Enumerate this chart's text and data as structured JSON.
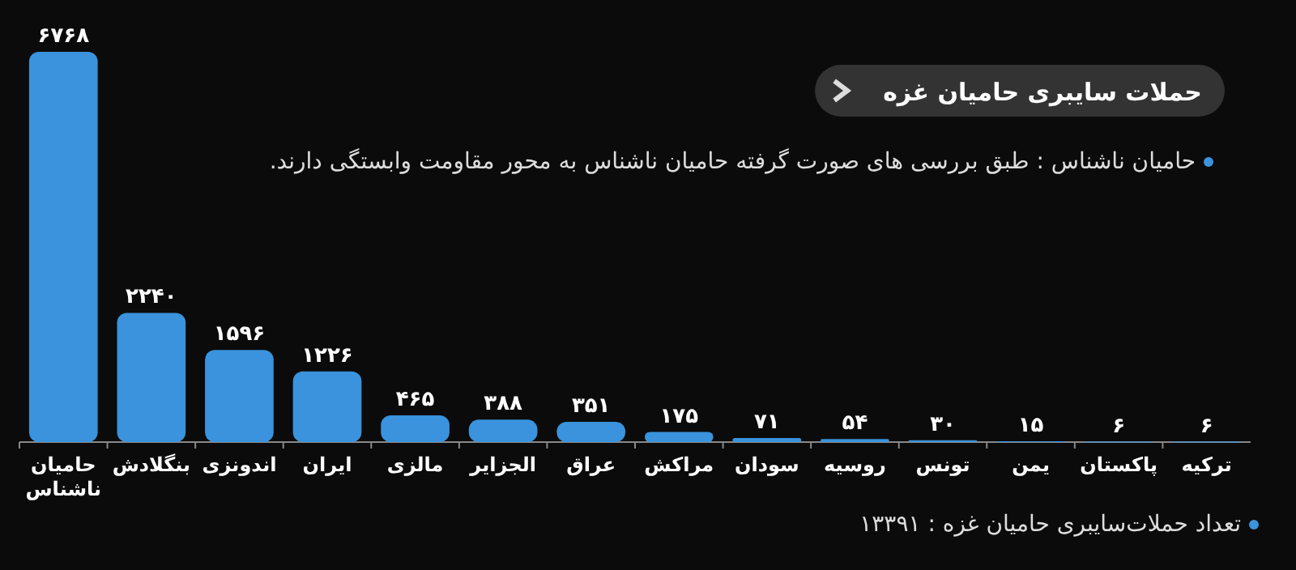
{
  "chart_data": {
    "type": "bar",
    "title": "حملات سایبری حامیان غزه",
    "categories": [
      "حامیان ناشناس",
      "بنگلادش",
      "اندونزی",
      "ایران",
      "مالزی",
      "الجزایر",
      "عراق",
      "مراکش",
      "سودان",
      "روسیه",
      "تونس",
      "یمن",
      "پاکستان",
      "ترکیه"
    ],
    "values": [
      6768,
      2240,
      1596,
      1226,
      465,
      388,
      351,
      175,
      71,
      54,
      30,
      15,
      6,
      6
    ],
    "value_labels": [
      "۶۷۶۸",
      "۲۲۴۰",
      "۱۵۹۶",
      "۱۲۲۶",
      "۴۶۵",
      "۳۸۸",
      "۳۵۱",
      "۱۷۵",
      "۷۱",
      "۵۴",
      "۳۰",
      "۱۵",
      "۶",
      "۶"
    ],
    "color": "#3a93dc",
    "annotations": [
      "حامیان ناشناس : طبق بررسی های صورت گرفته حامیان ناشناس به محور مقاومت وابستگی دارند.",
      "تعداد حملات‌سایبری حامیان غزه : ۱۳۳۹۱"
    ]
  }
}
